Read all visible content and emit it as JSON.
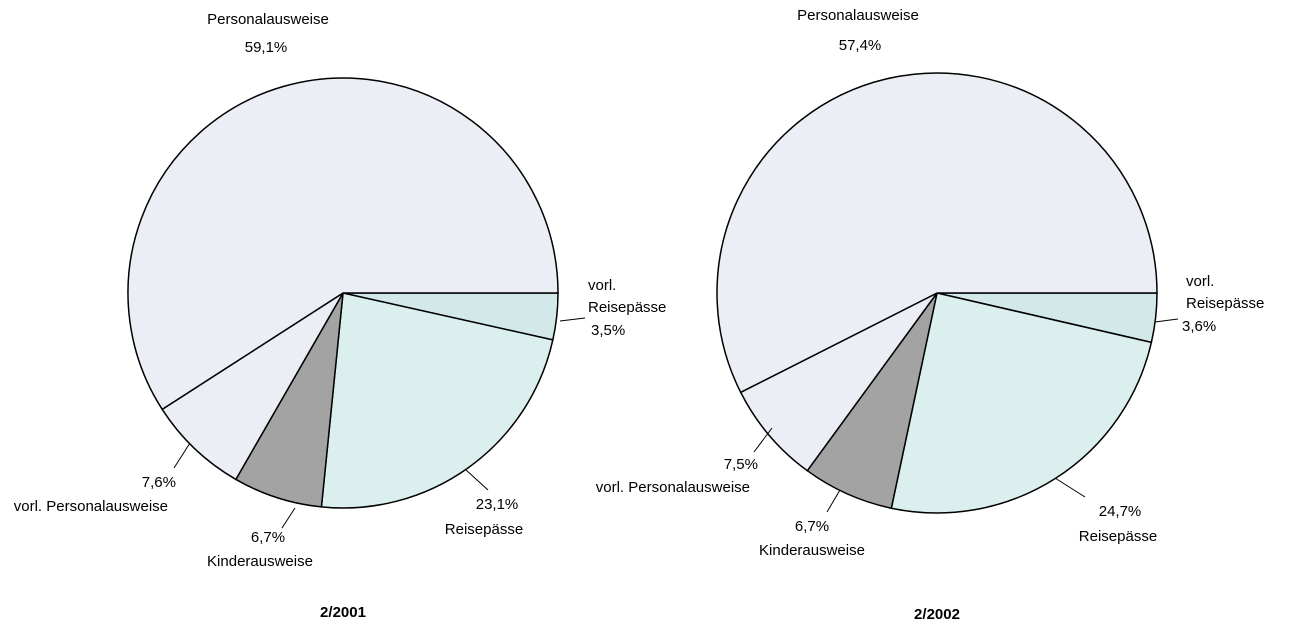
{
  "chart_data": [
    {
      "type": "pie",
      "title": "2/2001",
      "categories": [
        "vorl. Reisepässe",
        "Reisepässe",
        "Kinderausweise",
        "vorl. Personalausweise",
        "Personalausweise"
      ],
      "values": [
        3.5,
        23.1,
        6.7,
        7.6,
        59.1
      ],
      "value_labels": [
        "3,5%",
        "23,1%",
        "6,7%",
        "7,6%",
        "59,1%"
      ],
      "colors": [
        "#d3e9e9",
        "#dcefef",
        "#a3a3a3",
        "#eceef5",
        "#eceef5"
      ]
    },
    {
      "type": "pie",
      "title": "2/2002",
      "categories": [
        "vorl. Reisepässe",
        "Reisepässe",
        "Kinderausweise",
        "vorl. Personalausweise",
        "Personalausweise"
      ],
      "values": [
        3.6,
        24.7,
        6.7,
        7.5,
        57.4
      ],
      "value_labels": [
        "3,6%",
        "24,7%",
        "6,7%",
        "7,5%",
        "57,4%"
      ],
      "colors": [
        "#d3e9e9",
        "#dcefef",
        "#a3a3a3",
        "#eceef5",
        "#eceef5"
      ]
    }
  ]
}
